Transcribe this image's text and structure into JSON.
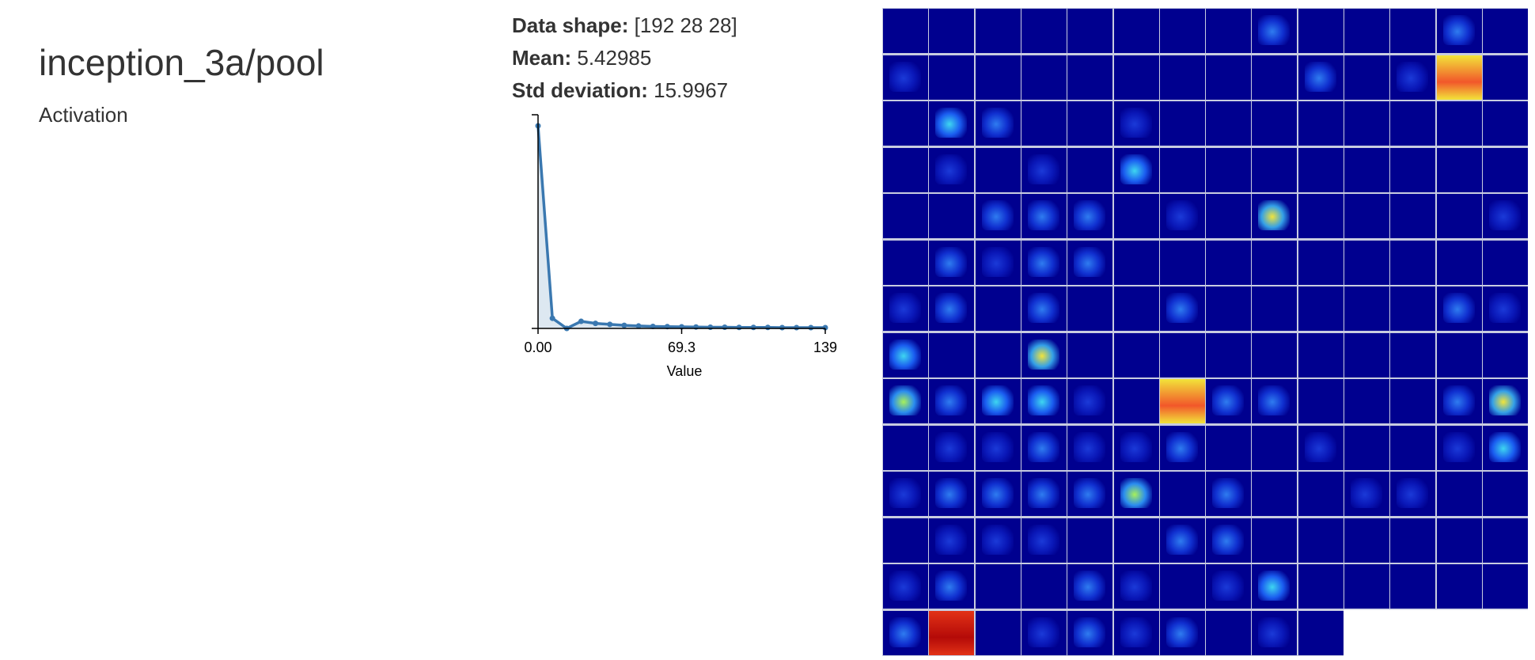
{
  "header": {
    "title": "inception_3a/pool",
    "subtitle": "Activation"
  },
  "stats": {
    "shape_label": "Data shape:",
    "shape_value": "[192 28 28]",
    "mean_label": "Mean:",
    "mean_value": "5.42985",
    "std_label": "Std deviation:",
    "std_value": "15.9967"
  },
  "chart_data": {
    "type": "area",
    "title": "",
    "xlabel": "Value",
    "ylabel": "",
    "xlim": [
      0,
      139
    ],
    "x_tick_labels": [
      "0.00",
      "69.3",
      "139"
    ],
    "x": [
      0,
      6.95,
      13.9,
      20.85,
      27.8,
      34.75,
      41.7,
      48.65,
      55.6,
      62.55,
      69.5,
      76.45,
      83.4,
      90.35,
      97.3,
      104.25,
      111.2,
      118.15,
      125.1,
      132.05,
      139
    ],
    "series": [
      {
        "values": [
          1.0,
          0.05,
          0.0,
          0.035,
          0.025,
          0.02,
          0.015,
          0.012,
          0.01,
          0.009,
          0.008,
          0.007,
          0.006,
          0.006,
          0.005,
          0.005,
          0.005,
          0.004,
          0.004,
          0.004,
          0.004
        ]
      }
    ],
    "colors": {
      "line": "#3a78b0",
      "fill": "#dde8f1"
    }
  },
  "activation_grid": {
    "channels": 192,
    "columns": 14,
    "base_color": "#00008f",
    "grid_color": "#c8cce0"
  }
}
